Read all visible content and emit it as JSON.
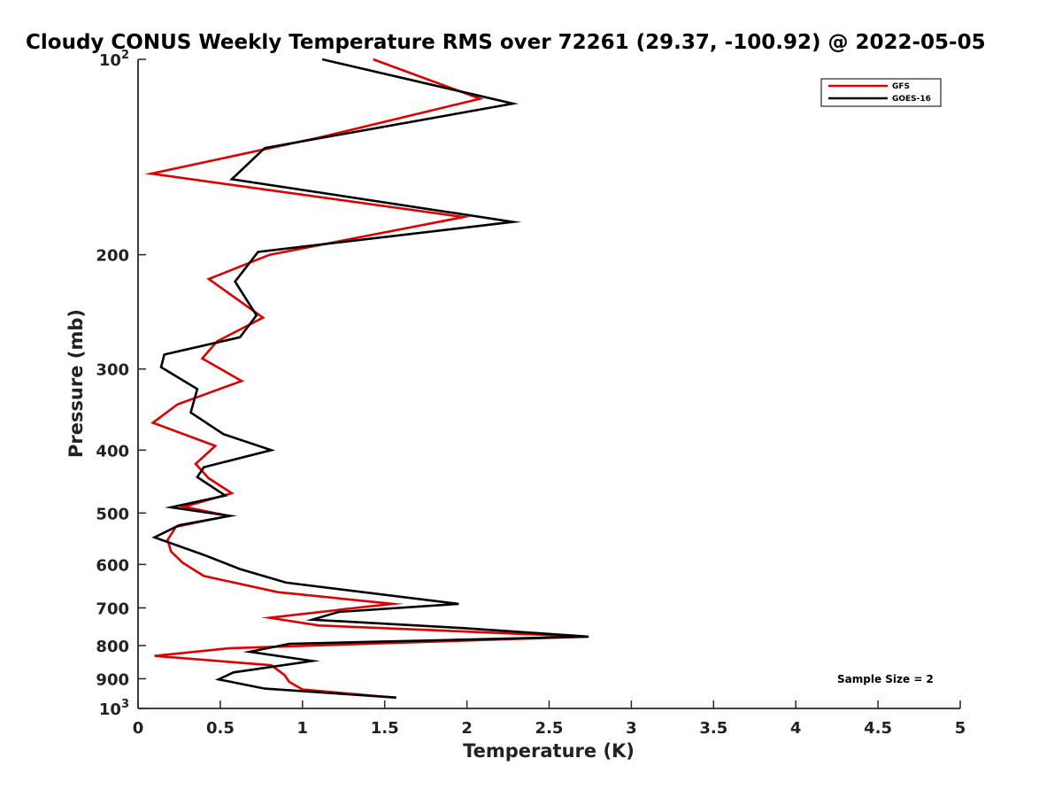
{
  "chart_data": {
    "type": "line",
    "title": "Cloudy CONUS Weekly Temperature RMS over 72261 (29.37, -100.92) @ 2022-05-05",
    "xlabel": "Temperature (K)",
    "ylabel": "Pressure (mb)",
    "xlim": [
      0,
      5
    ],
    "ylim": [
      100,
      1000
    ],
    "y_scale": "log",
    "y_reversed": true,
    "x_ticks": [
      "0",
      "0.5",
      "1",
      "1.5",
      "2",
      "2.5",
      "3",
      "3.5",
      "4",
      "4.5",
      "5"
    ],
    "x_tick_values": [
      0,
      0.5,
      1,
      1.5,
      2,
      2.5,
      3,
      3.5,
      4,
      4.5,
      5
    ],
    "y_ticks": [
      {
        "value": 100,
        "base": "10",
        "exp": "2"
      },
      {
        "value": 200,
        "label": "200"
      },
      {
        "value": 300,
        "label": "300"
      },
      {
        "value": 400,
        "label": "400"
      },
      {
        "value": 500,
        "label": "500"
      },
      {
        "value": 600,
        "label": "600"
      },
      {
        "value": 700,
        "label": "700"
      },
      {
        "value": 800,
        "label": "800"
      },
      {
        "value": 900,
        "label": "900"
      },
      {
        "value": 1000,
        "base": "10",
        "exp": "3"
      }
    ],
    "grid": false,
    "legend_position": "top-right",
    "annotation": "Sample Size = 2",
    "series": [
      {
        "name": "GFS",
        "color": "#e00000",
        "points": [
          [
            1.43,
            100
          ],
          [
            2.08,
            115
          ],
          [
            1.1,
            132
          ],
          [
            0.08,
            150
          ],
          [
            1.98,
            175
          ],
          [
            0.8,
            200
          ],
          [
            0.43,
            218
          ],
          [
            0.76,
            250
          ],
          [
            0.48,
            272
          ],
          [
            0.39,
            289
          ],
          [
            0.63,
            313
          ],
          [
            0.24,
            340
          ],
          [
            0.09,
            363
          ],
          [
            0.47,
            394
          ],
          [
            0.35,
            420
          ],
          [
            0.43,
            442
          ],
          [
            0.57,
            466
          ],
          [
            0.28,
            489
          ],
          [
            0.55,
            505
          ],
          [
            0.23,
            525
          ],
          [
            0.18,
            550
          ],
          [
            0.2,
            573
          ],
          [
            0.27,
            596
          ],
          [
            0.4,
            625
          ],
          [
            0.85,
            662
          ],
          [
            1.55,
            690
          ],
          [
            1.37,
            698
          ],
          [
            0.8,
            725
          ],
          [
            1.1,
            745
          ],
          [
            2.73,
            775
          ],
          [
            0.55,
            808
          ],
          [
            0.1,
            830
          ],
          [
            0.81,
            858
          ],
          [
            0.89,
            888
          ],
          [
            0.92,
            910
          ],
          [
            1.0,
            935
          ],
          [
            1.57,
            963
          ]
        ]
      },
      {
        "name": "GOES-16",
        "color": "#000000",
        "points": [
          [
            1.12,
            100
          ],
          [
            2.28,
            117
          ],
          [
            0.77,
            137
          ],
          [
            0.57,
            153
          ],
          [
            2.28,
            178
          ],
          [
            0.73,
            198
          ],
          [
            0.59,
            220
          ],
          [
            0.72,
            248
          ],
          [
            0.62,
            268
          ],
          [
            0.16,
            285
          ],
          [
            0.14,
            298
          ],
          [
            0.36,
            322
          ],
          [
            0.32,
            350
          ],
          [
            0.52,
            378
          ],
          [
            0.81,
            400
          ],
          [
            0.4,
            425
          ],
          [
            0.36,
            440
          ],
          [
            0.53,
            470
          ],
          [
            0.2,
            490
          ],
          [
            0.56,
            505
          ],
          [
            0.25,
            522
          ],
          [
            0.1,
            545
          ],
          [
            0.4,
            580
          ],
          [
            0.62,
            610
          ],
          [
            0.9,
            640
          ],
          [
            1.95,
            690
          ],
          [
            1.22,
            710
          ],
          [
            1.06,
            730
          ],
          [
            1.98,
            752
          ],
          [
            2.74,
            775
          ],
          [
            0.92,
            795
          ],
          [
            0.68,
            818
          ],
          [
            1.06,
            845
          ],
          [
            0.58,
            880
          ],
          [
            0.49,
            902
          ],
          [
            0.77,
            932
          ],
          [
            1.57,
            962
          ]
        ]
      }
    ]
  }
}
